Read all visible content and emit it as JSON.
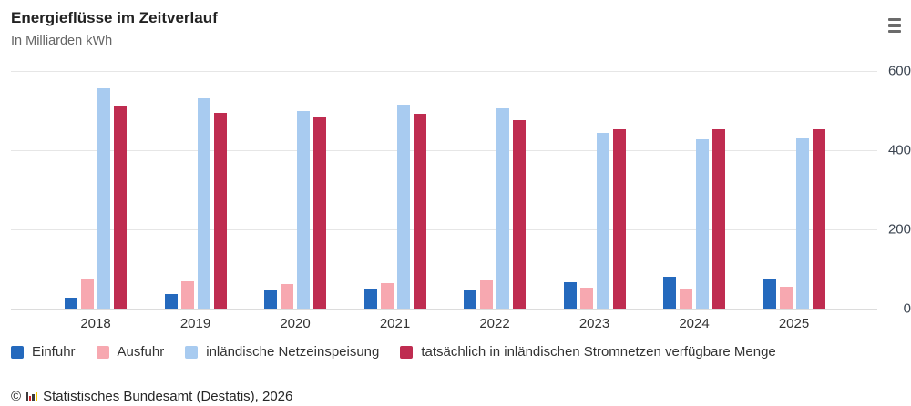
{
  "header": {
    "title": "Energieflüsse im Zeitverlauf",
    "subtitle": "In Milliarden kWh"
  },
  "chart_data": {
    "type": "bar",
    "title": "Energieflüsse im Zeitverlauf",
    "subtitle": "In Milliarden kWh",
    "unit": "Milliarden kWh",
    "categories": [
      "2018",
      "2019",
      "2020",
      "2021",
      "2022",
      "2023",
      "2024",
      "2025"
    ],
    "series": [
      {
        "name": "Einfuhr",
        "color": "#2469bd",
        "values": [
          28,
          37,
          46,
          48,
          46,
          67,
          80,
          77
        ]
      },
      {
        "name": "Ausfuhr",
        "color": "#f7a8b0",
        "values": [
          76,
          68,
          62,
          64,
          71,
          53,
          51,
          55
        ]
      },
      {
        "name": "inländische Netzeinspeisung",
        "color": "#a8cbf0",
        "values": [
          556,
          532,
          498,
          514,
          505,
          443,
          427,
          431
        ]
      },
      {
        "name": "tatsächlich in inländischen Stromnetzen verfügbare Menge",
        "color": "#bf2c50",
        "values": [
          512,
          495,
          482,
          492,
          477,
          454,
          454,
          454
        ]
      }
    ],
    "ylim": [
      0,
      600
    ],
    "yticks": [
      0,
      200,
      400,
      600
    ],
    "xlabel": "",
    "ylabel": "",
    "grid": true,
    "legend_position": "bottom"
  },
  "footer": {
    "copyright": "©",
    "source": "Statistisches Bundesamt (Destatis), 2026"
  }
}
